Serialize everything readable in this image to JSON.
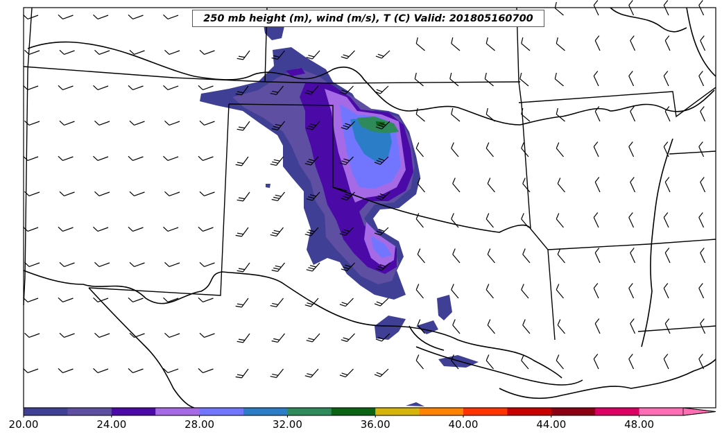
{
  "title": "250 mb height (m), wind (m/s), T (C) Valid: 201805160700",
  "colorbar": {
    "colors": [
      "#3f3f96",
      "#5e4fa2",
      "#4b0aa8",
      "#a66ae6",
      "#7276ff",
      "#2c7dc8",
      "#2e8a5a",
      "#0a6414",
      "#d7b40a",
      "#ff8200",
      "#ff3200",
      "#c80000",
      "#8c0014",
      "#dc0064",
      "#ff6eb4"
    ],
    "tick_labels": [
      "20.00",
      "24.00",
      "28.00",
      "32.00",
      "36.00",
      "40.00",
      "44.00",
      "48.00"
    ],
    "tick_values": [
      20,
      24,
      28,
      32,
      36,
      40,
      44,
      48
    ],
    "range": [
      20,
      51
    ],
    "extend": "max"
  },
  "map": {
    "region": "Southern Plains (OK, TX, KS, NM, AR)",
    "wind_barbs": "grid of wind barbs across domain",
    "shaded_field": "wind speed band from NE New Mexico to southern Oklahoma"
  }
}
